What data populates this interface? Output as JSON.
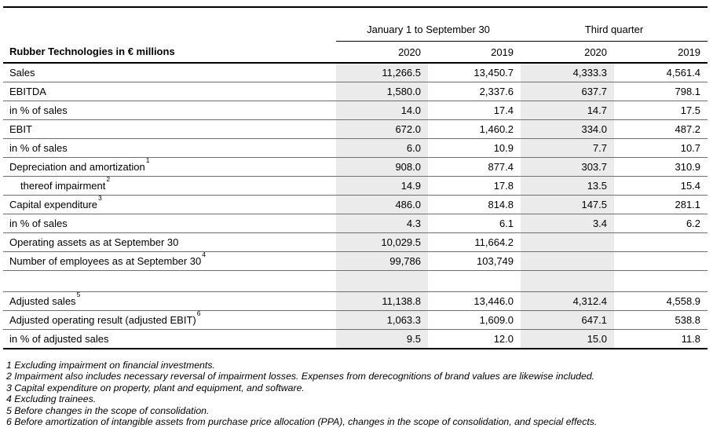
{
  "table": {
    "title": "Rubber Technologies in € millions",
    "highlight_color": "#ebebeb",
    "col_groups": [
      {
        "label": "January 1 to September 30"
      },
      {
        "label": "Third quarter"
      }
    ],
    "year_headers": [
      "2020",
      "2019",
      "2020",
      "2019"
    ],
    "rows": [
      {
        "label": "Sales",
        "values": [
          "11,266.5",
          "13,450.7",
          "4,333.3",
          "4,561.4"
        ]
      },
      {
        "label": "EBITDA",
        "values": [
          "1,580.0",
          "2,337.6",
          "637.7",
          "798.1"
        ]
      },
      {
        "label": "in % of sales",
        "values": [
          "14.0",
          "17.4",
          "14.7",
          "17.5"
        ]
      },
      {
        "label": "EBIT",
        "values": [
          "672.0",
          "1,460.2",
          "334.0",
          "487.2"
        ]
      },
      {
        "label": "in % of sales",
        "values": [
          "6.0",
          "10.9",
          "7.7",
          "10.7"
        ]
      },
      {
        "label": "Depreciation and amortization",
        "sup": "1",
        "values": [
          "908.0",
          "877.4",
          "303.7",
          "310.9"
        ]
      },
      {
        "label": "thereof impairment",
        "sup": "2",
        "indent": true,
        "values": [
          "14.9",
          "17.8",
          "13.5",
          "15.4"
        ]
      },
      {
        "label": "Capital expenditure",
        "sup": "3",
        "values": [
          "486.0",
          "814.8",
          "147.5",
          "281.1"
        ]
      },
      {
        "label": "in % of sales",
        "values": [
          "4.3",
          "6.1",
          "3.4",
          "6.2"
        ]
      },
      {
        "label": "Operating assets as at September 30",
        "values": [
          "10,029.5",
          "11,664.2",
          "",
          ""
        ]
      },
      {
        "label": "Number of employees as at September 30",
        "sup": "4",
        "values": [
          "99,786",
          "103,749",
          "",
          ""
        ]
      },
      {
        "label": "",
        "spacer": true,
        "values": [
          "",
          "",
          "",
          ""
        ]
      },
      {
        "label": "Adjusted sales",
        "sup": "5",
        "values": [
          "11,138.8",
          "13,446.0",
          "4,312.4",
          "4,558.9"
        ]
      },
      {
        "label": "Adjusted operating result (adjusted EBIT)",
        "sup": "6",
        "values": [
          "1,063.3",
          "1,609.0",
          "647.1",
          "538.8"
        ]
      },
      {
        "label": "in % of adjusted sales",
        "values": [
          "9.5",
          "12.0",
          "15.0",
          "11.8"
        ]
      }
    ]
  },
  "footnotes": [
    "1 Excluding impairment on financial investments.",
    "2 Impairment also includes necessary reversal of impairment losses. Expenses from derecognitions of brand values are likewise included.",
    "3 Capital expenditure on property, plant and equipment, and software.",
    "4 Excluding trainees.",
    "5 Before changes in the scope of consolidation.",
    "6 Before amortization of intangible assets from purchase price allocation (PPA), changes in the scope of consolidation, and special effects."
  ]
}
